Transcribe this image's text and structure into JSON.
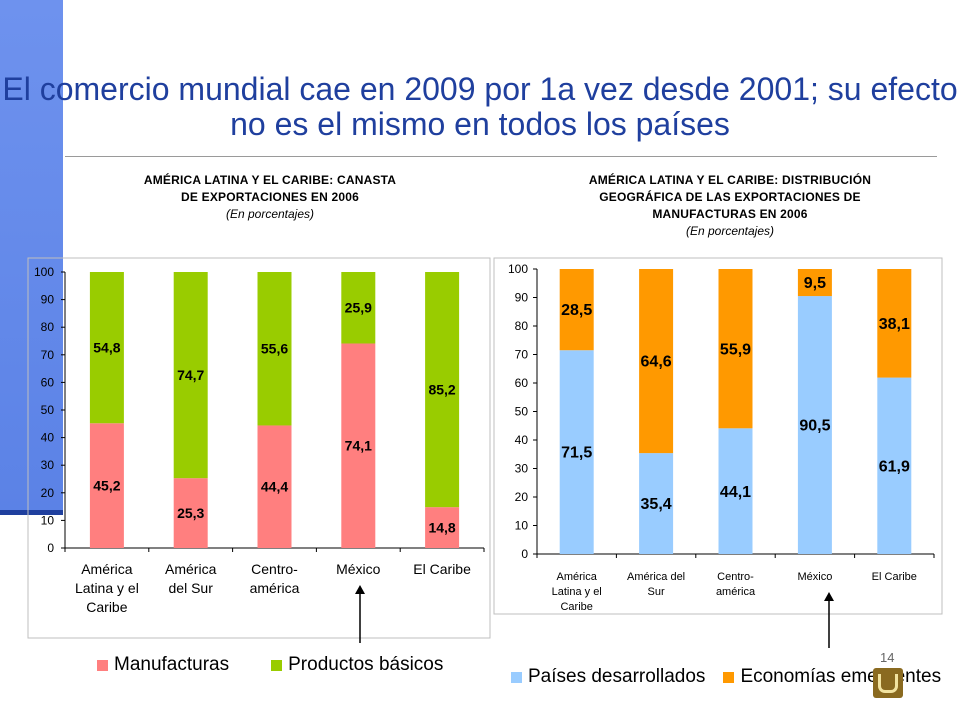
{
  "slide": {
    "title": "El comercio mundial cae en 2009 por 1a vez desde 2001; su efecto no es el mismo en todos los países",
    "page_number": "14"
  },
  "chart_data": [
    {
      "type": "bar",
      "stacked": true,
      "title_lines": [
        "AMÉRICA LATINA Y EL CARIBE: CANASTA",
        "DE EXPORTACIONES EN 2006"
      ],
      "subtitle": "(En porcentajes)",
      "categories": [
        [
          "América",
          "Latina y el",
          "Caribe"
        ],
        [
          "América",
          "del Sur"
        ],
        [
          "Centro-",
          "américa"
        ],
        [
          "México"
        ],
        [
          "El Caribe"
        ]
      ],
      "series": [
        {
          "name": "Manufacturas",
          "color": "#ff7f7f",
          "values": [
            45.2,
            25.3,
            44.4,
            74.1,
            14.8
          ],
          "labels": [
            "45,2",
            "25,3",
            "44,4",
            "74,1",
            "14,8"
          ]
        },
        {
          "name": "Productos básicos",
          "color": "#99cc00",
          "values": [
            54.8,
            74.7,
            55.6,
            25.9,
            85.2
          ],
          "labels": [
            "54,8",
            "74,7",
            "55,6",
            "25,9",
            "85,2"
          ]
        }
      ],
      "ylim": [
        0,
        100
      ],
      "yticks": [
        "0",
        "10",
        "20",
        "30",
        "40",
        "50",
        "60",
        "70",
        "80",
        "90",
        "100"
      ],
      "legend_position": "bottom"
    },
    {
      "type": "bar",
      "stacked": true,
      "title_lines": [
        "AMÉRICA LATINA Y EL CARIBE: DISTRIBUCIÓN",
        "GEOGRÁFICA DE LAS EXPORTACIONES DE",
        "MANUFACTURAS EN 2006"
      ],
      "subtitle": "(En porcentajes)",
      "categories": [
        [
          "América",
          "Latina y el",
          "Caribe"
        ],
        [
          "América del",
          "Sur"
        ],
        [
          "Centro-",
          "américa"
        ],
        [
          "México"
        ],
        [
          "El Caribe"
        ]
      ],
      "series": [
        {
          "name": "Países desarrollados",
          "color": "#99ccff",
          "values": [
            71.5,
            35.4,
            44.1,
            90.5,
            61.9
          ],
          "labels": [
            "71,5",
            "35,4",
            "44,1",
            "90,5",
            "61,9"
          ]
        },
        {
          "name": "Economías emergentes",
          "color": "#ff9900",
          "values": [
            28.5,
            64.6,
            55.9,
            9.5,
            38.1
          ],
          "labels": [
            "28,5",
            "64,6",
            "55,9",
            "9,5",
            "38,1"
          ]
        }
      ],
      "ylim": [
        0,
        100
      ],
      "yticks": [
        "0",
        "10",
        "20",
        "30",
        "40",
        "50",
        "60",
        "70",
        "80",
        "90",
        "100"
      ],
      "legend_position": "bottom"
    }
  ]
}
